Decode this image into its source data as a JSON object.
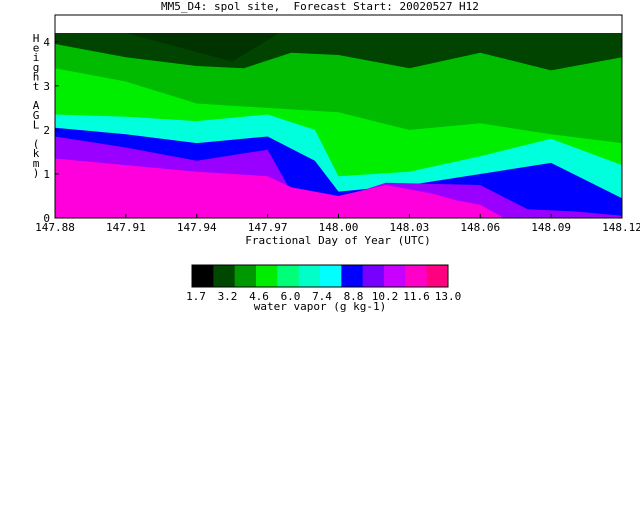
{
  "chart_data": {
    "type": "heatmap",
    "title": "MM5_D4: spol site,  Forecast Start: 20020527 H12",
    "xlabel": "Fractional Day of Year (UTC)",
    "ylabel": "Height AGL (km)",
    "xlim": [
      147.88,
      148.12
    ],
    "ylim": [
      0,
      4.2
    ],
    "x_ticks": [
      "147.88",
      "147.91",
      "147.94",
      "147.97",
      "148.00",
      "148.03",
      "148.06",
      "148.09",
      "148.12"
    ],
    "y_ticks": [
      "0",
      "1",
      "2",
      "3",
      "4"
    ],
    "colorbar": {
      "label": "water vapor (g kg-1)",
      "tick_labels": [
        "1.7",
        "3.2",
        "4.6",
        "6.0",
        "7.4",
        "8.8",
        "10.2",
        "11.6",
        "13.0"
      ],
      "colors": [
        "#000000",
        "#004800",
        "#009800",
        "#00ec00",
        "#00ff78",
        "#00ffc8",
        "#00ffff",
        "#0000ff",
        "#7800ff",
        "#c800ff",
        "#ff00c8",
        "#ff0080"
      ]
    },
    "contour_boundaries_km": [
      {
        "level": "10.2-11.6 / above",
        "x": [
          147.88,
          147.91,
          147.94,
          147.97,
          147.98,
          148.0,
          148.02,
          148.04,
          148.05,
          148.06,
          148.07
        ],
        "y": [
          1.35,
          1.2,
          1.05,
          0.95,
          0.7,
          0.5,
          0.75,
          0.55,
          0.4,
          0.3,
          0.0
        ]
      },
      {
        "level": "8.8",
        "x": [
          147.88,
          147.91,
          147.94,
          147.97,
          147.98,
          148.0,
          148.02,
          148.06,
          148.08,
          148.1,
          148.12
        ],
        "y": [
          1.85,
          1.6,
          1.3,
          1.55,
          0.6,
          0.45,
          0.8,
          0.75,
          0.2,
          0.15,
          0.05
        ]
      },
      {
        "level": "7.4",
        "x": [
          147.88,
          147.91,
          147.94,
          147.97,
          147.99,
          148.0,
          148.03,
          148.06,
          148.09,
          148.12
        ],
        "y": [
          2.05,
          1.9,
          1.7,
          1.85,
          1.3,
          0.6,
          0.75,
          1.0,
          1.25,
          0.45
        ]
      },
      {
        "level": "6.0",
        "x": [
          147.88,
          147.91,
          147.94,
          147.97,
          147.99,
          148.0,
          148.03,
          148.06,
          148.09,
          148.12
        ],
        "y": [
          2.35,
          2.3,
          2.2,
          2.35,
          2.0,
          0.95,
          1.05,
          1.4,
          1.8,
          1.2
        ]
      },
      {
        "level": "4.6",
        "x": [
          147.88,
          147.91,
          147.94,
          147.97,
          148.0,
          148.03,
          148.06,
          148.09,
          148.12
        ],
        "y": [
          3.4,
          3.1,
          2.6,
          2.5,
          2.4,
          2.0,
          2.15,
          1.9,
          1.7
        ]
      },
      {
        "level": "3.2",
        "x": [
          147.88,
          147.91,
          147.94,
          147.96,
          147.98,
          148.0,
          148.03,
          148.06,
          148.09,
          148.12
        ],
        "y": [
          3.95,
          3.65,
          3.45,
          3.4,
          3.75,
          3.7,
          3.4,
          3.75,
          3.35,
          3.65
        ]
      }
    ]
  }
}
